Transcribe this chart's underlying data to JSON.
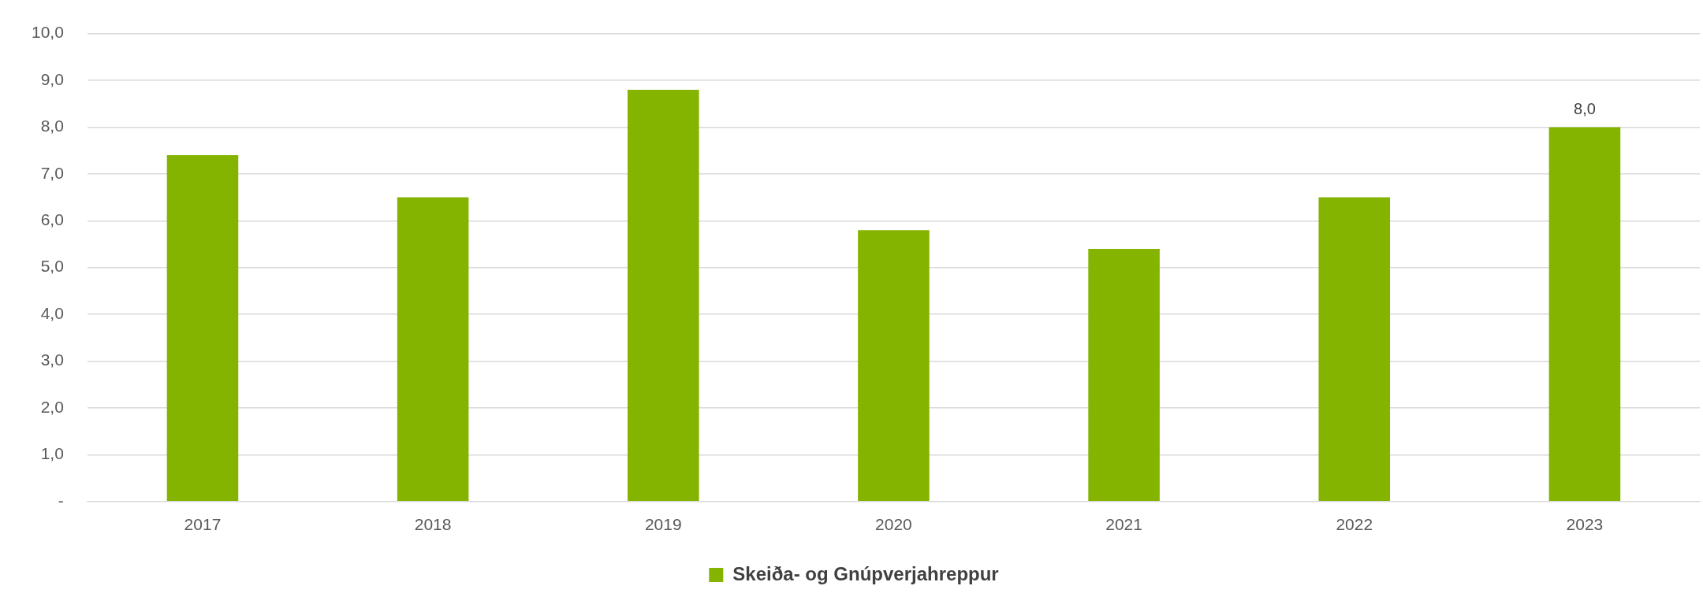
{
  "chart_data": {
    "type": "bar",
    "categories": [
      "2017",
      "2018",
      "2019",
      "2020",
      "2021",
      "2022",
      "2023"
    ],
    "series": [
      {
        "name": "Skeiða- og Gnúpverjahreppur",
        "color": "#84b400",
        "values": [
          7.4,
          6.5,
          8.8,
          5.8,
          5.4,
          6.5,
          8.0
        ],
        "value_labels": [
          null,
          null,
          null,
          null,
          null,
          null,
          "8,0"
        ]
      }
    ],
    "ylim": [
      0,
      10
    ],
    "yticks": [
      {
        "value": 0,
        "label": "-"
      },
      {
        "value": 1,
        "label": "1,0"
      },
      {
        "value": 2,
        "label": "2,0"
      },
      {
        "value": 3,
        "label": "3,0"
      },
      {
        "value": 4,
        "label": "4,0"
      },
      {
        "value": 5,
        "label": "5,0"
      },
      {
        "value": 6,
        "label": "6,0"
      },
      {
        "value": 7,
        "label": "7,0"
      },
      {
        "value": 8,
        "label": "8,0"
      },
      {
        "value": 9,
        "label": "9,0"
      },
      {
        "value": 10,
        "label": "10,0"
      }
    ],
    "grid": "y",
    "legend": "bottom"
  }
}
